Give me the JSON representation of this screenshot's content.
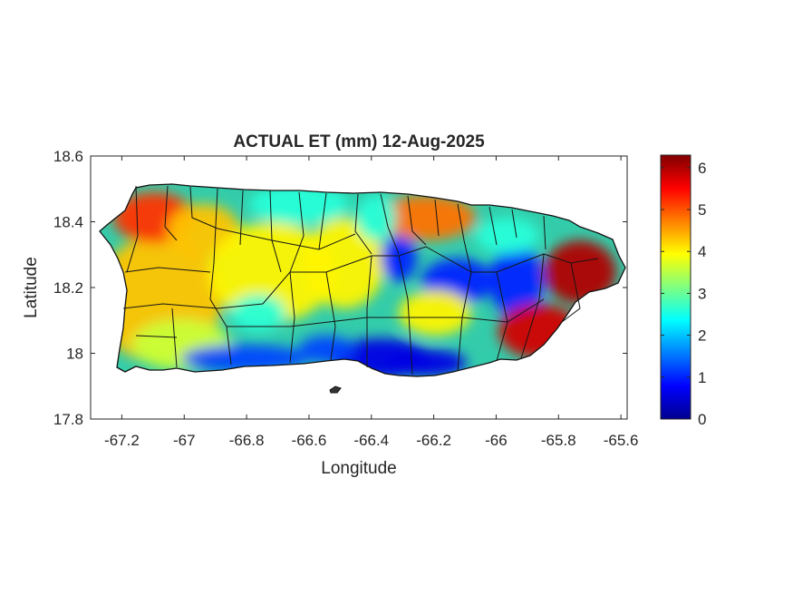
{
  "title": "ACTUAL ET (mm) 12-Aug-2025",
  "xlabel": "Longitude",
  "ylabel": "Latitude",
  "x_ticks": [
    "-67.2",
    "-67",
    "-66.8",
    "-66.6",
    "-66.4",
    "-66.2",
    "-66",
    "-65.8",
    "-65.6"
  ],
  "y_ticks": [
    "18.6",
    "18.4",
    "18.2",
    "18",
    "17.8"
  ],
  "colorbar_ticks": [
    "6",
    "5",
    "4",
    "3",
    "2",
    "1",
    "0"
  ],
  "colormap": "jet",
  "chart_data": {
    "type": "heatmap",
    "title": "ACTUAL ET (mm) 12-Aug-2025",
    "xlabel": "Longitude",
    "ylabel": "Latitude",
    "xlim": [
      -67.3,
      -65.58
    ],
    "ylim": [
      17.8,
      18.6
    ],
    "x_ticks": [
      -67.2,
      -67,
      -66.8,
      -66.6,
      -66.4,
      -66.2,
      -66,
      -65.8,
      -65.6
    ],
    "y_ticks": [
      18.6,
      18.4,
      18.2,
      18,
      17.8
    ],
    "color_range": [
      0,
      6.3
    ],
    "colorbar_ticks": [
      0,
      1,
      2,
      3,
      4,
      5,
      6
    ],
    "colormap": "jet",
    "grid": false,
    "regions": [
      {
        "area": "northwest coast",
        "value": 5.2
      },
      {
        "area": "west interior",
        "value": 4.3
      },
      {
        "area": "southwest",
        "value": 3.6
      },
      {
        "area": "south coast",
        "value": 1.2
      },
      {
        "area": "north-central coast",
        "value": 2.6
      },
      {
        "area": "central interior",
        "value": 4.0
      },
      {
        "area": "north coast near San Juan",
        "value": 4.8
      },
      {
        "area": "east-central (Caguas basin)",
        "value": 1.0
      },
      {
        "area": "south-central coast",
        "value": 0.6
      },
      {
        "area": "eastern (El Yunque)",
        "value": 6.0
      },
      {
        "area": "southeast",
        "value": 5.8
      }
    ]
  }
}
